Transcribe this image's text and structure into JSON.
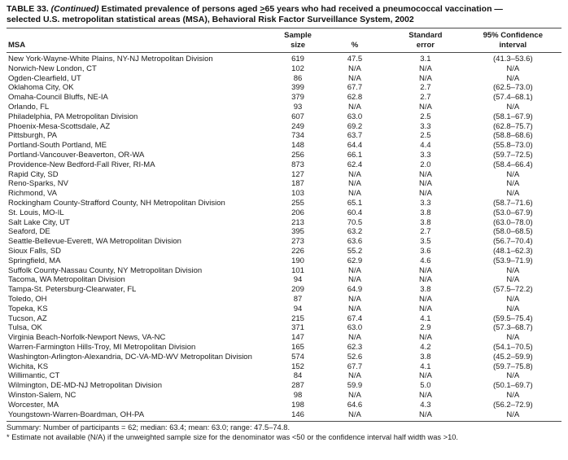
{
  "title": {
    "t1": "TABLE 33.",
    "t2": "(Continued)",
    "t3": "Estimated prevalence of persons aged",
    "t4": ">",
    "t5": "65 years who had received a pneumococcal vaccination —",
    "line2": "selected U.S. metropolitan statistical areas (MSA), Behavioral Risk Factor Surveillance System, 2002"
  },
  "table": {
    "columns": {
      "msa": "MSA",
      "sample1": "Sample",
      "sample2": "size",
      "pct": "%",
      "stderr1": "Standard",
      "stderr2": "error",
      "ci1": "95% Confidence",
      "ci2": "interval"
    },
    "rows": [
      [
        "New York-Wayne-White Plains, NY-NJ Metropolitan Division",
        "619",
        "47.5",
        "3.1",
        "(41.3–53.6)"
      ],
      [
        "Norwich-New London, CT",
        "102",
        "N/A",
        "N/A",
        "N/A"
      ],
      [
        "Ogden-Clearfield, UT",
        "86",
        "N/A",
        "N/A",
        "N/A"
      ],
      [
        "Oklahoma City, OK",
        "399",
        "67.7",
        "2.7",
        "(62.5–73.0)"
      ],
      [
        "Omaha-Council Bluffs, NE-IA",
        "379",
        "62.8",
        "2.7",
        "(57.4–68.1)"
      ],
      [
        "Orlando, FL",
        "93",
        "N/A",
        "N/A",
        "N/A"
      ],
      [
        "Philadelphia, PA Metropolitan Division",
        "607",
        "63.0",
        "2.5",
        "(58.1–67.9)"
      ],
      [
        "Phoenix-Mesa-Scottsdale, AZ",
        "249",
        "69.2",
        "3.3",
        "(62.8–75.7)"
      ],
      [
        "Pittsburgh, PA",
        "734",
        "63.7",
        "2.5",
        "(58.8–68.6)"
      ],
      [
        "Portland-South Portland, ME",
        "148",
        "64.4",
        "4.4",
        "(55.8–73.0)"
      ],
      [
        "Portland-Vancouver-Beaverton, OR-WA",
        "256",
        "66.1",
        "3.3",
        "(59.7–72.5)"
      ],
      [
        "Providence-New Bedford-Fall River, RI-MA",
        "873",
        "62.4",
        "2.0",
        "(58.4–66.4)"
      ],
      [
        "Rapid City, SD",
        "127",
        "N/A",
        "N/A",
        "N/A"
      ],
      [
        "Reno-Sparks, NV",
        "187",
        "N/A",
        "N/A",
        "N/A"
      ],
      [
        "Richmond, VA",
        "103",
        "N/A",
        "N/A",
        "N/A"
      ],
      [
        "Rockingham County-Strafford County, NH Metropolitan Division",
        "255",
        "65.1",
        "3.3",
        "(58.7–71.6)"
      ],
      [
        "St. Louis, MO-IL",
        "206",
        "60.4",
        "3.8",
        "(53.0–67.9)"
      ],
      [
        "Salt Lake City, UT",
        "213",
        "70.5",
        "3.8",
        "(63.0–78.0)"
      ],
      [
        "Seaford, DE",
        "395",
        "63.2",
        "2.7",
        "(58.0–68.5)"
      ],
      [
        "Seattle-Bellevue-Everett, WA Metropolitan Division",
        "273",
        "63.6",
        "3.5",
        "(56.7–70.4)"
      ],
      [
        "Sioux Falls, SD",
        "226",
        "55.2",
        "3.6",
        "(48.1–62.3)"
      ],
      [
        "Springfield, MA",
        "190",
        "62.9",
        "4.6",
        "(53.9–71.9)"
      ],
      [
        "Suffolk County-Nassau County, NY Metropolitan Division",
        "101",
        "N/A",
        "N/A",
        "N/A"
      ],
      [
        "Tacoma, WA Metropolitan Division",
        "94",
        "N/A",
        "N/A",
        "N/A"
      ],
      [
        "Tampa-St. Petersburg-Clearwater, FL",
        "209",
        "64.9",
        "3.8",
        "(57.5–72.2)"
      ],
      [
        "Toledo, OH",
        "87",
        "N/A",
        "N/A",
        "N/A"
      ],
      [
        "Topeka, KS",
        "94",
        "N/A",
        "N/A",
        "N/A"
      ],
      [
        "Tucson, AZ",
        "215",
        "67.4",
        "4.1",
        "(59.5–75.4)"
      ],
      [
        "Tulsa, OK",
        "371",
        "63.0",
        "2.9",
        "(57.3–68.7)"
      ],
      [
        "Virginia Beach-Norfolk-Newport News, VA-NC",
        "147",
        "N/A",
        "N/A",
        "N/A"
      ],
      [
        "Warren-Farmington Hills-Troy, MI Metropolitan Division",
        "165",
        "62.3",
        "4.2",
        "(54.1–70.5)"
      ],
      [
        "Washington-Arlington-Alexandria, DC-VA-MD-WV Metropolitan Division",
        "574",
        "52.6",
        "3.8",
        "(45.2–59.9)"
      ],
      [
        "Wichita, KS",
        "152",
        "67.7",
        "4.1",
        "(59.7–75.8)"
      ],
      [
        "Willimantic, CT",
        "84",
        "N/A",
        "N/A",
        "N/A"
      ],
      [
        "Wilmington, DE-MD-NJ Metropolitan Division",
        "287",
        "59.9",
        "5.0",
        "(50.1–69.7)"
      ],
      [
        "Winston-Salem, NC",
        "98",
        "N/A",
        "N/A",
        "N/A"
      ],
      [
        "Worcester, MA",
        "198",
        "64.6",
        "4.3",
        "(56.2–72.9)"
      ],
      [
        "Youngstown-Warren-Boardman, OH-PA",
        "146",
        "N/A",
        "N/A",
        "N/A"
      ]
    ]
  },
  "footnotes": {
    "summary": "Summary: Number of participants = 62; median: 63.4; mean: 63.0; range: 47.5–74.8.",
    "note": "* Estimate not available (N/A) if the unweighted sample size for the denominator was <50 or the confidence interval half width was >10."
  }
}
